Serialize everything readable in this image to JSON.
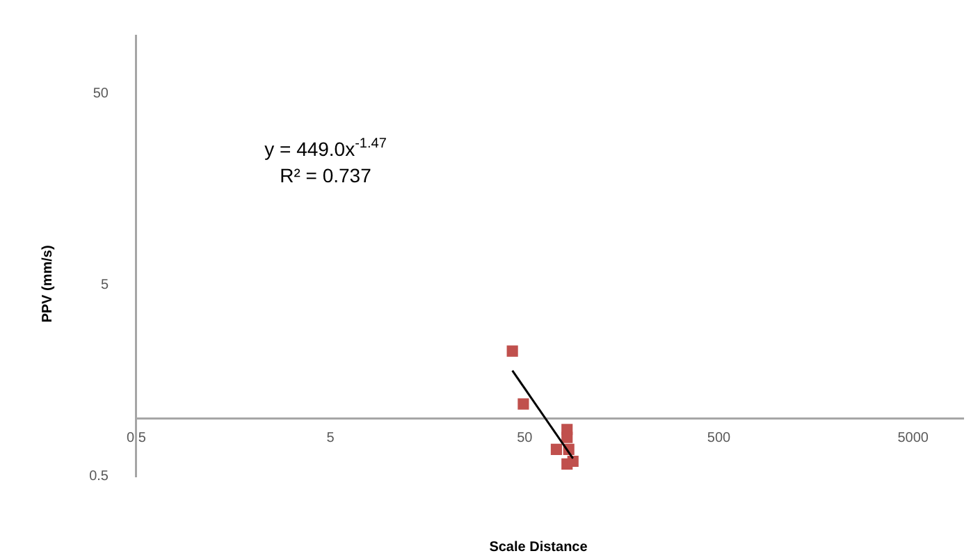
{
  "chart_data": {
    "type": "scatter",
    "xlabel": "Scale Distance",
    "ylabel": "PPV (mm/s)",
    "log": "xy",
    "xlim": [
      0.5,
      9000
    ],
    "xticks": [
      0.5,
      5,
      50,
      500,
      5000
    ],
    "ylim": [
      0.5,
      100
    ],
    "yticks": [
      0.5,
      5,
      50
    ],
    "grid": false,
    "legend": false,
    "annotations": [
      "y = 449.0x$^{-1.47}$",
      "R² = 0.737"
    ],
    "series": [
      {
        "marker": "square",
        "color": "#c0504d",
        "x": [
          43.2,
          49.2,
          82.6,
          82.6,
          72.8,
          84.3,
          82.6,
          88.6
        ],
        "values": [
          2.25,
          1.19,
          0.875,
          0.795,
          0.688,
          0.688,
          0.577,
          0.596
        ]
      },
      {
        "type": "line",
        "marker": "none",
        "color": "#000000",
        "x": [
          43.2,
          88.6
        ],
        "values": [
          1.78,
          0.617
        ]
      }
    ]
  }
}
